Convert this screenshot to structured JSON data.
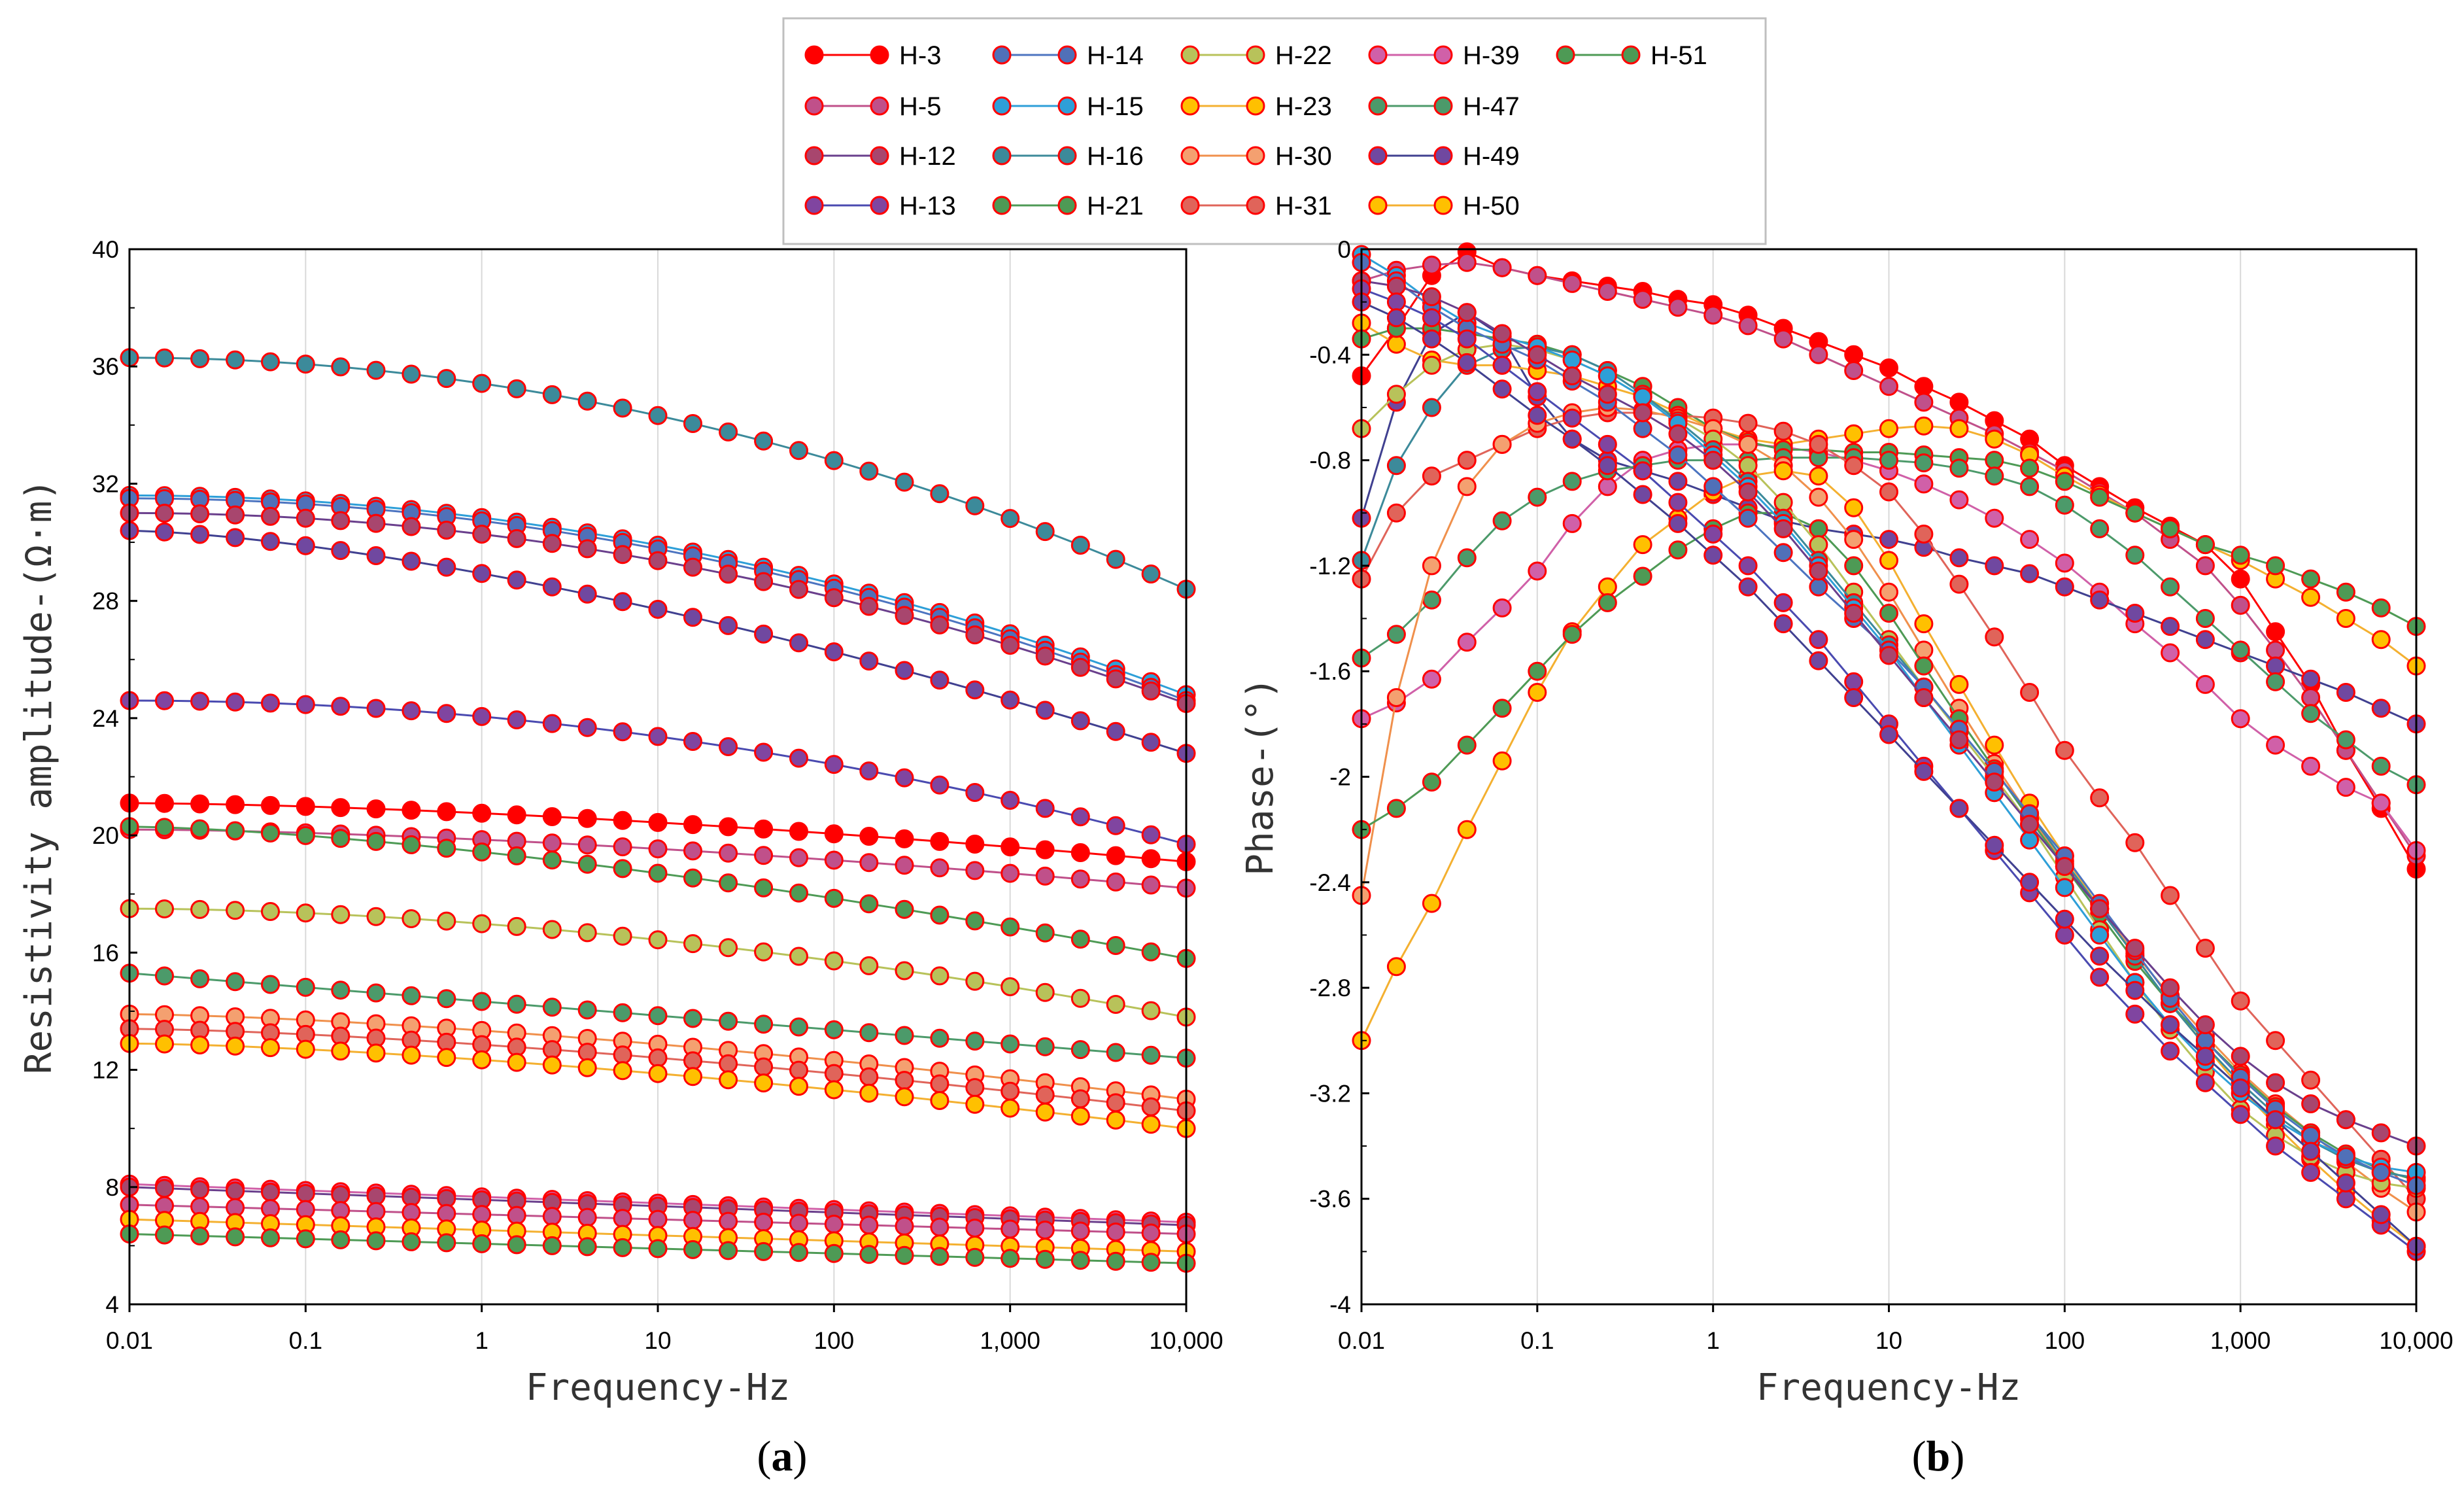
{
  "figure": {
    "panel_labels": [
      {
        "open": "(",
        "letter": "a",
        "close": ")"
      },
      {
        "open": "(",
        "letter": "b",
        "close": ")"
      }
    ]
  },
  "legend": {
    "entries": [
      {
        "name": "H-3",
        "fill": "#FF0000",
        "line": "#FF0000"
      },
      {
        "name": "H-5",
        "fill": "#C0508A",
        "line": "#C0508A"
      },
      {
        "name": "H-12",
        "fill": "#A8466E",
        "line": "#6A3F8C"
      },
      {
        "name": "H-13",
        "fill": "#8045A0",
        "line": "#4A4AB0"
      },
      {
        "name": "H-14",
        "fill": "#5070B8",
        "line": "#4C74C0"
      },
      {
        "name": "H-15",
        "fill": "#2E9FD8",
        "line": "#2E9FD8"
      },
      {
        "name": "H-16",
        "fill": "#3C8A9A",
        "line": "#3C8A9A"
      },
      {
        "name": "H-21",
        "fill": "#4E9A55",
        "line": "#4E9A55"
      },
      {
        "name": "H-22",
        "fill": "#B8C25A",
        "line": "#B8C25A"
      },
      {
        "name": "H-23",
        "fill": "#FFC000",
        "line": "#F4B030"
      },
      {
        "name": "H-30",
        "fill": "#F4A070",
        "line": "#F0904C"
      },
      {
        "name": "H-31",
        "fill": "#E0645A",
        "line": "#E0645A"
      },
      {
        "name": "H-39",
        "fill": "#D060A8",
        "line": "#D060A8"
      },
      {
        "name": "H-47",
        "fill": "#4C9A6A",
        "line": "#4C9A6A"
      },
      {
        "name": "H-49",
        "fill": "#7048A0",
        "line": "#404090"
      },
      {
        "name": "H-50",
        "fill": "#FFC000",
        "line": "#F4B030"
      },
      {
        "name": "H-51",
        "fill": "#4E9A55",
        "line": "#4E9A55"
      }
    ]
  },
  "chart_data": [
    {
      "id": "a",
      "type": "line",
      "title": "",
      "xlabel": "Frequency-Hz",
      "ylabel": "Resistivity amplitude-(Ω·m)",
      "xscale": "log",
      "xlim": [
        0.01,
        10000
      ],
      "ylim": [
        4,
        40
      ],
      "x_ticks": [
        "0.01",
        "0.1",
        "1",
        "10",
        "100",
        "1,000",
        "10,000"
      ],
      "y_ticks": [
        "4",
        "8",
        "12",
        "16",
        "20",
        "24",
        "28",
        "32",
        "36",
        "40"
      ],
      "grid": "vertical",
      "x": [
        0.01,
        0.0158,
        0.0251,
        0.0398,
        0.0631,
        0.1,
        0.158,
        0.251,
        0.398,
        0.631,
        1,
        1.58,
        2.51,
        3.98,
        6.31,
        10,
        15.8,
        25.1,
        39.8,
        63.1,
        100,
        158,
        251,
        398,
        631,
        1000,
        1580,
        2510,
        3980,
        6310,
        10000
      ],
      "series": [
        {
          "name": "H-16",
          "y_start": 36.3,
          "y_end": 28.4,
          "shape": 2.0
        },
        {
          "name": "H-15",
          "y_start": 31.6,
          "y_end": 24.8,
          "shape": 2.0
        },
        {
          "name": "H-14",
          "y_start": 31.5,
          "y_end": 24.6,
          "shape": 2.0
        },
        {
          "name": "H-12",
          "y_start": 31.0,
          "y_end": 24.5,
          "shape": 2.0
        },
        {
          "name": "H-49",
          "y_start": 30.4,
          "y_end": 22.8,
          "shape": 1.5
        },
        {
          "name": "H-13",
          "y_start": 24.6,
          "y_end": 19.7,
          "shape": 2.0
        },
        {
          "name": "H-3",
          "y_start": 21.1,
          "y_end": 19.1,
          "shape": 1.6
        },
        {
          "name": "H-5",
          "y_start": 20.2,
          "y_end": 18.2,
          "shape": 1.6
        },
        {
          "name": "H-21",
          "y_start": 20.3,
          "y_end": 15.8,
          "shape": 1.5
        },
        {
          "name": "H-22",
          "y_start": 17.5,
          "y_end": 13.8,
          "shape": 1.8
        },
        {
          "name": "H-47",
          "y_start": 15.3,
          "y_end": 12.4,
          "shape": 1.0
        },
        {
          "name": "H-30",
          "y_start": 13.9,
          "y_end": 11.0,
          "shape": 1.5
        },
        {
          "name": "H-31",
          "y_start": 13.4,
          "y_end": 10.6,
          "shape": 1.5
        },
        {
          "name": "H-23",
          "y_start": 12.9,
          "y_end": 10.0,
          "shape": 1.5
        },
        {
          "name": "H-39",
          "y_start": 8.1,
          "y_end": 6.8,
          "shape": 1.0
        },
        {
          "name": "H-12",
          "y_start": 8.0,
          "y_end": 6.7,
          "shape": 1.0
        },
        {
          "name": "H-5",
          "y_start": 7.4,
          "y_end": 6.4,
          "shape": 1.0
        },
        {
          "name": "H-50",
          "y_start": 6.9,
          "y_end": 5.8,
          "shape": 1.0
        },
        {
          "name": "H-51",
          "y_start": 6.4,
          "y_end": 5.4,
          "shape": 1.0
        }
      ]
    },
    {
      "id": "b",
      "type": "line",
      "title": "",
      "xlabel": "Frequency-Hz",
      "ylabel": "Phase-(°)",
      "xscale": "log",
      "xlim": [
        0.01,
        10000
      ],
      "ylim": [
        -4,
        0
      ],
      "x_ticks": [
        "0.01",
        "0.1",
        "1",
        "10",
        "100",
        "1,000",
        "10,000"
      ],
      "y_ticks": [
        "0",
        "-0.4",
        "-0.8",
        "-1.2",
        "-1.6",
        "-2",
        "-2.4",
        "-2.8",
        "-3.2",
        "-3.6",
        "-4"
      ],
      "grid": "vertical",
      "x": [
        0.01,
        0.0158,
        0.0251,
        0.0398,
        0.0631,
        0.1,
        0.158,
        0.251,
        0.398,
        0.631,
        1,
        1.58,
        2.51,
        3.98,
        6.31,
        10,
        15.8,
        25.1,
        39.8,
        63.1,
        100,
        158,
        251,
        398,
        631,
        1000,
        1580,
        2510,
        3980,
        6310,
        10000
      ],
      "series": [
        {
          "name": "H-3",
          "y": [
            -0.48,
            -0.3,
            -0.1,
            -0.01,
            -0.07,
            -0.1,
            -0.12,
            -0.14,
            -0.16,
            -0.19,
            -0.21,
            -0.25,
            -0.3,
            -0.35,
            -0.4,
            -0.45,
            -0.52,
            -0.58,
            -0.65,
            -0.72,
            -0.82,
            -0.9,
            -0.98,
            -1.05,
            -1.12,
            -1.25,
            -1.45,
            -1.65,
            -1.9,
            -2.12,
            -2.35
          ]
        },
        {
          "name": "H-5",
          "y": [
            -0.12,
            -0.08,
            -0.06,
            -0.05,
            -0.07,
            -0.1,
            -0.13,
            -0.16,
            -0.19,
            -0.22,
            -0.25,
            -0.29,
            -0.34,
            -0.4,
            -0.46,
            -0.52,
            -0.58,
            -0.64,
            -0.7,
            -0.77,
            -0.84,
            -0.92,
            -1.0,
            -1.1,
            -1.2,
            -1.35,
            -1.52,
            -1.7,
            -1.9,
            -2.1,
            -2.3
          ]
        },
        {
          "name": "H-39",
          "y": [
            -1.78,
            -1.72,
            -1.63,
            -1.49,
            -1.36,
            -1.22,
            -1.04,
            -0.9,
            -0.8,
            -0.76,
            -0.74,
            -0.74,
            -0.75,
            -0.77,
            -0.8,
            -0.84,
            -0.89,
            -0.95,
            -1.02,
            -1.1,
            -1.19,
            -1.3,
            -1.42,
            -1.53,
            -1.65,
            -1.78,
            -1.88,
            -1.96,
            -2.04,
            -2.1,
            -2.28
          ]
        },
        {
          "name": "H-49",
          "y": [
            -1.02,
            -0.58,
            -0.32,
            -0.24,
            -0.33,
            -0.56,
            -0.72,
            -0.8,
            -0.84,
            -0.88,
            -0.93,
            -0.98,
            -1.03,
            -1.06,
            -1.08,
            -1.1,
            -1.13,
            -1.17,
            -1.2,
            -1.23,
            -1.28,
            -1.33,
            -1.38,
            -1.43,
            -1.48,
            -1.53,
            -1.58,
            -1.63,
            -1.68,
            -1.74,
            -1.8
          ]
        },
        {
          "name": "H-50",
          "y": [
            -0.28,
            -0.36,
            -0.42,
            -0.44,
            -0.44,
            -0.46,
            -0.48,
            -0.52,
            -0.56,
            -0.62,
            -0.68,
            -0.72,
            -0.74,
            -0.72,
            -0.7,
            -0.68,
            -0.67,
            -0.68,
            -0.72,
            -0.78,
            -0.86,
            -0.93,
            -1.0,
            -1.06,
            -1.12,
            -1.18,
            -1.25,
            -1.32,
            -1.4,
            -1.48,
            -1.58
          ]
        },
        {
          "name": "H-51",
          "y": [
            -0.34,
            -0.3,
            -0.3,
            -0.32,
            -0.34,
            -0.36,
            -0.4,
            -0.46,
            -0.52,
            -0.6,
            -0.68,
            -0.73,
            -0.76,
            -0.76,
            -0.77,
            -0.77,
            -0.78,
            -0.79,
            -0.8,
            -0.83,
            -0.88,
            -0.94,
            -1.0,
            -1.06,
            -1.12,
            -1.16,
            -1.2,
            -1.25,
            -1.3,
            -1.36,
            -1.43
          ]
        },
        {
          "name": "H-47",
          "y": [
            -1.55,
            -1.46,
            -1.33,
            -1.17,
            -1.03,
            -0.94,
            -0.88,
            -0.84,
            -0.82,
            -0.8,
            -0.8,
            -0.8,
            -0.79,
            -0.79,
            -0.79,
            -0.8,
            -0.81,
            -0.83,
            -0.86,
            -0.9,
            -0.97,
            -1.06,
            -1.16,
            -1.28,
            -1.4,
            -1.52,
            -1.64,
            -1.76,
            -1.86,
            -1.96,
            -2.03
          ]
        },
        {
          "name": "H-31",
          "y": [
            -1.25,
            -1.0,
            -0.86,
            -0.8,
            -0.74,
            -0.68,
            -0.64,
            -0.62,
            -0.62,
            -0.63,
            -0.64,
            -0.66,
            -0.69,
            -0.74,
            -0.82,
            -0.92,
            -1.08,
            -1.27,
            -1.47,
            -1.68,
            -1.9,
            -2.08,
            -2.25,
            -2.45,
            -2.65,
            -2.85,
            -3.0,
            -3.15,
            -3.3,
            -3.45,
            -3.6
          ]
        },
        {
          "name": "H-30",
          "y": [
            -2.45,
            -1.7,
            -1.2,
            -0.9,
            -0.74,
            -0.66,
            -0.62,
            -0.6,
            -0.61,
            -0.64,
            -0.68,
            -0.74,
            -0.82,
            -0.94,
            -1.1,
            -1.3,
            -1.52,
            -1.74,
            -1.95,
            -2.15,
            -2.33,
            -2.5,
            -2.67,
            -2.83,
            -2.98,
            -3.12,
            -3.24,
            -3.35,
            -3.46,
            -3.56,
            -3.65
          ]
        },
        {
          "name": "H-23",
          "y": [
            -3.0,
            -2.72,
            -2.48,
            -2.2,
            -1.94,
            -1.68,
            -1.45,
            -1.28,
            -1.12,
            -1.02,
            -0.92,
            -0.86,
            -0.84,
            -0.86,
            -0.98,
            -1.18,
            -1.42,
            -1.65,
            -1.88,
            -2.1,
            -2.3,
            -2.5,
            -2.68,
            -2.86,
            -3.02,
            -3.18,
            -3.32,
            -3.45,
            -3.57,
            -3.68,
            -3.78
          ]
        },
        {
          "name": "H-21",
          "y": [
            -2.2,
            -2.12,
            -2.02,
            -1.88,
            -1.74,
            -1.6,
            -1.46,
            -1.34,
            -1.24,
            -1.14,
            -1.06,
            -1.0,
            -1.0,
            -1.06,
            -1.2,
            -1.38,
            -1.58,
            -1.78,
            -1.97,
            -2.16,
            -2.34,
            -2.52,
            -2.7,
            -2.86,
            -3.0,
            -3.13,
            -3.25,
            -3.35,
            -3.43,
            -3.49,
            -3.53
          ]
        },
        {
          "name": "H-22",
          "y": [
            -0.68,
            -0.55,
            -0.44,
            -0.38,
            -0.36,
            -0.38,
            -0.42,
            -0.48,
            -0.56,
            -0.64,
            -0.72,
            -0.82,
            -0.96,
            -1.12,
            -1.3,
            -1.48,
            -1.66,
            -1.83,
            -2.0,
            -2.18,
            -2.38,
            -2.58,
            -2.78,
            -2.96,
            -3.12,
            -3.26,
            -3.36,
            -3.44,
            -3.5,
            -3.54,
            -3.56
          ]
        },
        {
          "name": "H-16",
          "y": [
            -1.18,
            -0.82,
            -0.6,
            -0.44,
            -0.38,
            -0.37,
            -0.4,
            -0.46,
            -0.55,
            -0.65,
            -0.76,
            -0.88,
            -1.02,
            -1.18,
            -1.34,
            -1.5,
            -1.66,
            -1.82,
            -1.98,
            -2.14,
            -2.32,
            -2.5,
            -2.68,
            -2.86,
            -3.02,
            -3.16,
            -3.28,
            -3.38,
            -3.45,
            -3.5,
            -3.52
          ]
        },
        {
          "name": "H-15",
          "y": [
            -0.02,
            -0.1,
            -0.2,
            -0.28,
            -0.33,
            -0.37,
            -0.42,
            -0.48,
            -0.56,
            -0.66,
            -0.78,
            -0.9,
            -1.04,
            -1.2,
            -1.36,
            -1.52,
            -1.7,
            -1.88,
            -2.06,
            -2.24,
            -2.42,
            -2.6,
            -2.78,
            -2.94,
            -3.08,
            -3.2,
            -3.3,
            -3.38,
            -3.44,
            -3.48,
            -3.5
          ]
        },
        {
          "name": "H-14",
          "y": [
            -0.05,
            -0.12,
            -0.22,
            -0.3,
            -0.36,
            -0.42,
            -0.5,
            -0.58,
            -0.68,
            -0.78,
            -0.9,
            -1.02,
            -1.15,
            -1.28,
            -1.4,
            -1.52,
            -1.66,
            -1.82,
            -1.98,
            -2.14,
            -2.3,
            -2.48,
            -2.66,
            -2.84,
            -3.0,
            -3.14,
            -3.26,
            -3.36,
            -3.44,
            -3.5,
            -3.55
          ]
        },
        {
          "name": "H-12",
          "y": [
            -0.12,
            -0.14,
            -0.18,
            -0.24,
            -0.32,
            -0.4,
            -0.48,
            -0.55,
            -0.62,
            -0.7,
            -0.8,
            -0.92,
            -1.06,
            -1.22,
            -1.38,
            -1.54,
            -1.7,
            -1.86,
            -2.02,
            -2.18,
            -2.34,
            -2.5,
            -2.65,
            -2.8,
            -2.94,
            -3.06,
            -3.16,
            -3.24,
            -3.3,
            -3.35,
            -3.4
          ]
        },
        {
          "name": "H-13",
          "y": [
            -0.15,
            -0.2,
            -0.26,
            -0.34,
            -0.44,
            -0.54,
            -0.64,
            -0.74,
            -0.84,
            -0.96,
            -1.08,
            -1.2,
            -1.34,
            -1.48,
            -1.64,
            -1.8,
            -1.96,
            -2.12,
            -2.28,
            -2.44,
            -2.6,
            -2.76,
            -2.9,
            -3.04,
            -3.16,
            -3.28,
            -3.4,
            -3.5,
            -3.6,
            -3.7,
            -3.8
          ]
        },
        {
          "name": "H-49",
          "y": [
            -0.2,
            -0.26,
            -0.34,
            -0.43,
            -0.53,
            -0.63,
            -0.72,
            -0.82,
            -0.93,
            -1.04,
            -1.16,
            -1.28,
            -1.42,
            -1.56,
            -1.7,
            -1.84,
            -1.98,
            -2.12,
            -2.26,
            -2.4,
            -2.54,
            -2.68,
            -2.81,
            -2.94,
            -3.06,
            -3.18,
            -3.3,
            -3.42,
            -3.54,
            -3.66,
            -3.78
          ]
        }
      ]
    }
  ]
}
